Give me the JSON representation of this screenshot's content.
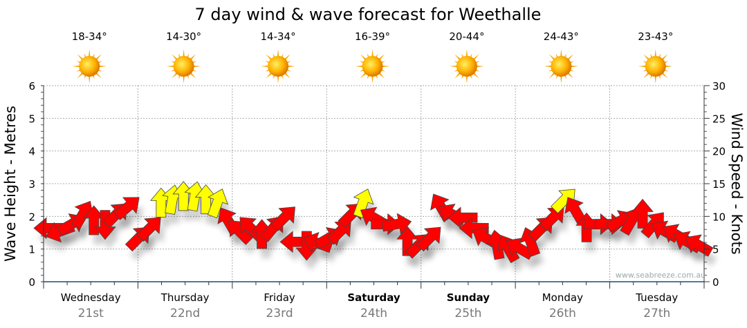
{
  "chart_data": {
    "type": "scatter",
    "title": "7 day wind & wave forecast for Weethalle",
    "ylabel": "Wave Height - Metres",
    "y2label": "Wind Speed - Knots",
    "ylim": [
      0,
      6
    ],
    "y2lim": [
      0,
      30
    ],
    "yticks": [
      "0",
      "1",
      "2",
      "3",
      "4",
      "5",
      "6"
    ],
    "y2ticks": [
      "0",
      "5",
      "10",
      "15",
      "20",
      "25",
      "30"
    ],
    "grid": true,
    "watermark": "www.seabreeze.com.au",
    "days": [
      {
        "day": "Wednesday",
        "date": "21st",
        "temp": "18-34°",
        "bold": false
      },
      {
        "day": "Thursday",
        "date": "22nd",
        "temp": "14-30°",
        "bold": false
      },
      {
        "day": "Friday",
        "date": "23rd",
        "temp": "14-34°",
        "bold": false
      },
      {
        "day": "Saturday",
        "date": "24th",
        "temp": "16-39°",
        "bold": true
      },
      {
        "day": "Sunday",
        "date": "25th",
        "temp": "20-44°",
        "bold": true
      },
      {
        "day": "Monday",
        "date": "26th",
        "temp": "24-43°",
        "bold": false
      },
      {
        "day": "Tuesday",
        "date": "27th",
        "temp": "23-43°",
        "bold": false
      }
    ],
    "wind_knots": [
      8.2,
      7.7,
      8.8,
      10.3,
      9.3,
      8.8,
      10.3,
      11.4,
      6.7,
      8.2,
      12,
      12.5,
      13,
      13,
      12.5,
      12,
      9.3,
      7.7,
      8.2,
      7.2,
      8.2,
      9.8,
      6.1,
      5.6,
      5.9,
      6.7,
      7.7,
      10.3,
      12,
      9.8,
      8.8,
      8.8,
      6.1,
      5.6,
      6.7,
      11.4,
      10.3,
      9.8,
      8.2,
      6.7,
      5.6,
      5.1,
      5.1,
      6.1,
      8.2,
      9.8,
      12.5,
      10.9,
      8.2,
      8.8,
      8.8,
      9.3,
      9.3,
      10.3,
      8.8,
      7.7,
      7.2,
      6.1,
      5.6
    ],
    "wind_direction_deg": [
      270,
      250,
      60,
      30,
      0,
      180,
      45,
      50,
      45,
      45,
      0,
      10,
      0,
      10,
      0,
      20,
      330,
      315,
      315,
      0,
      40,
      45,
      270,
      180,
      290,
      60,
      45,
      45,
      20,
      300,
      90,
      80,
      0,
      45,
      45,
      330,
      300,
      270,
      270,
      300,
      350,
      330,
      300,
      340,
      45,
      45,
      45,
      330,
      0,
      90,
      90,
      60,
      30,
      0,
      40,
      300,
      300,
      300,
      300
    ],
    "yellow_threshold_knots": 12,
    "colors": {
      "strong": "#ffff00",
      "normal": "#ff0000",
      "axis": "#1a4a7a",
      "date": "#777777"
    }
  }
}
